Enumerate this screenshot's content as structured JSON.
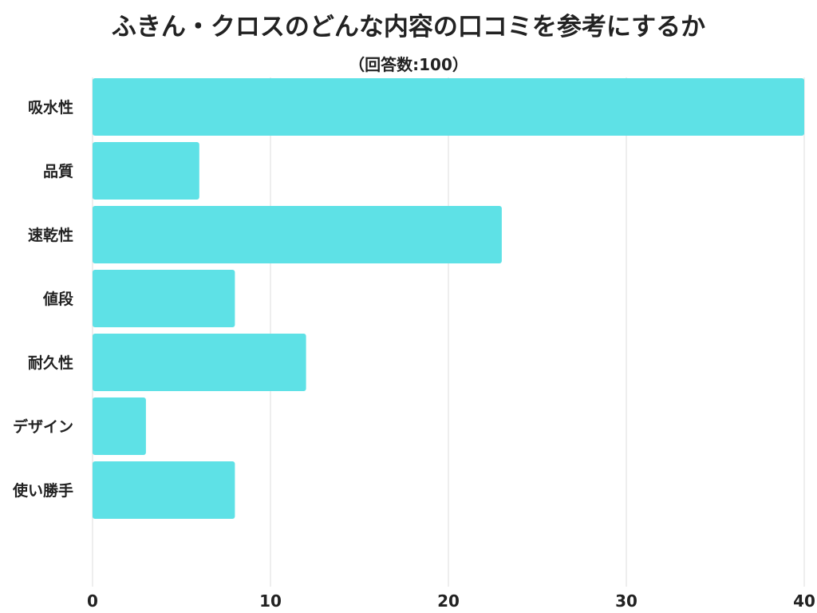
{
  "chart_data": {
    "type": "bar",
    "orientation": "horizontal",
    "title": "ふきん・クロスのどんな内容の口コミを参考にするか",
    "subtitle": "（回答数:100）",
    "categories": [
      "吸水性",
      "品質",
      "速乾性",
      "値段",
      "耐久性",
      "デザイン",
      "使い勝手"
    ],
    "values": [
      40,
      6,
      23,
      8,
      12,
      3,
      8
    ],
    "xlim": [
      0,
      40
    ],
    "x_ticks": [
      "0",
      "10",
      "20",
      "30",
      "40"
    ],
    "xlabel": "",
    "ylabel": "",
    "grid": true,
    "legend": "none",
    "bar_color": "#5ee1e6",
    "grid_color": "#dddddd"
  }
}
